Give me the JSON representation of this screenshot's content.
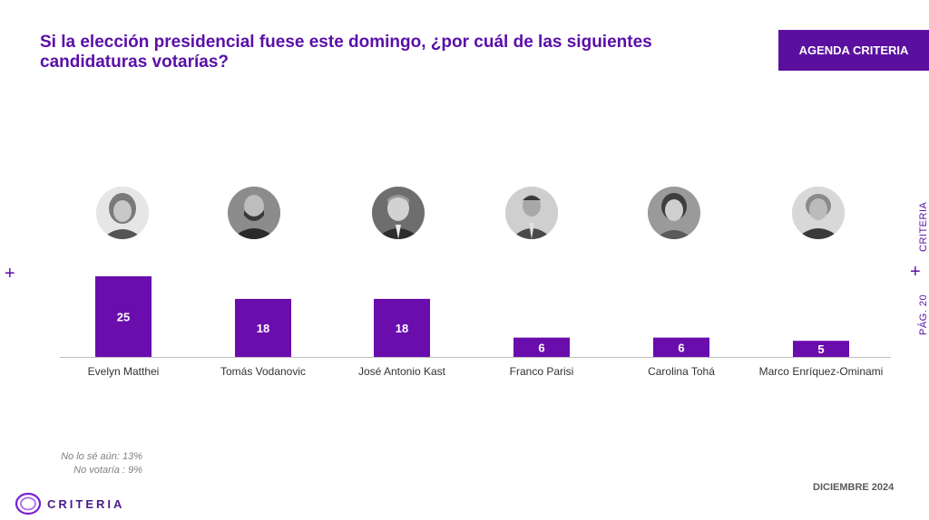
{
  "header": {
    "title_line1": " Si la elección presidencial fuese este domingo, ¿por cuál de las siguientes",
    "title_line2": "candidaturas votarías?",
    "tag": "AGENDA CRITERIA"
  },
  "side": {
    "brand": "CRITERIA",
    "page": "PÁG. 20"
  },
  "chart_data": {
    "type": "bar",
    "categories": [
      "Evelyn Matthei",
      "Tomás Vodanovic",
      "José Antonio Kast",
      "Franco Parisi",
      "Carolina Tohá",
      "Marco Enríquez-Ominami"
    ],
    "values": [
      25,
      18,
      18,
      6,
      6,
      5
    ],
    "ylim": [
      0,
      25
    ],
    "grid": false,
    "bar_color": "#6a0dad"
  },
  "notes": {
    "line1": "No lo sé aún: 13%",
    "line2": "No votaría : 9%"
  },
  "footer": {
    "date": "DICIEMBRE 2024",
    "logo": "CRITERIA"
  },
  "colors": {
    "brand": "#5a0fa8",
    "accent_bar": "#6a0dad"
  }
}
